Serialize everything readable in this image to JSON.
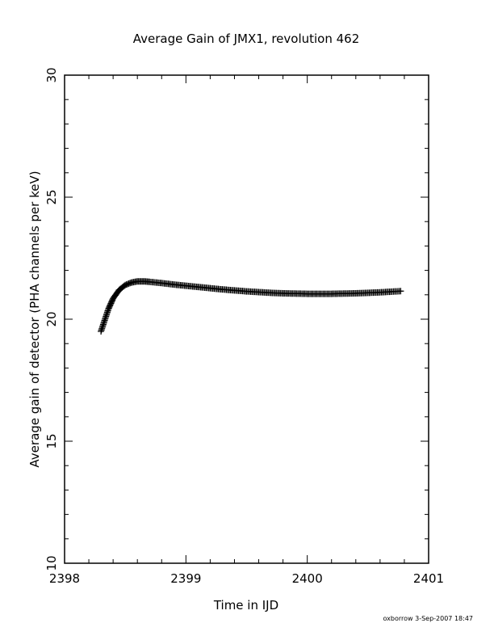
{
  "chart_data": {
    "type": "scatter",
    "title": "Average Gain of JMX1, revolution 462",
    "xlabel": "Time in IJD",
    "ylabel": "Average gain of detector (PHA channels per keV)",
    "xlim": [
      2398,
      2401
    ],
    "ylim": [
      10,
      30
    ],
    "x_ticks": [
      2398,
      2399,
      2400,
      2401
    ],
    "y_ticks": [
      10,
      15,
      20,
      25,
      30
    ],
    "x_tick_labels": [
      "2398",
      "2399",
      "2400",
      "2401"
    ],
    "y_tick_labels": [
      "10",
      "15",
      "20",
      "25",
      "30"
    ],
    "grid": false,
    "marker": "+",
    "series": [
      {
        "color": "#000000",
        "x": [
          2398.3,
          2398.33,
          2398.36,
          2398.4,
          2398.45,
          2398.5,
          2398.55,
          2398.6,
          2398.65,
          2398.7,
          2398.8,
          2398.9,
          2399.0,
          2399.1,
          2399.2,
          2399.3,
          2399.4,
          2399.5,
          2399.6,
          2399.7,
          2399.8,
          2399.9,
          2400.0,
          2400.1,
          2400.2,
          2400.3,
          2400.4,
          2400.5,
          2400.6,
          2400.7,
          2400.77
        ],
        "y": [
          19.5,
          19.95,
          20.4,
          20.85,
          21.2,
          21.4,
          21.5,
          21.55,
          21.55,
          21.53,
          21.48,
          21.42,
          21.37,
          21.32,
          21.27,
          21.22,
          21.18,
          21.14,
          21.11,
          21.08,
          21.06,
          21.05,
          21.04,
          21.04,
          21.04,
          21.05,
          21.06,
          21.08,
          21.1,
          21.13,
          21.15
        ]
      }
    ]
  },
  "footer": {
    "credit": "oxborrow  3-Sep-2007 18:47"
  }
}
